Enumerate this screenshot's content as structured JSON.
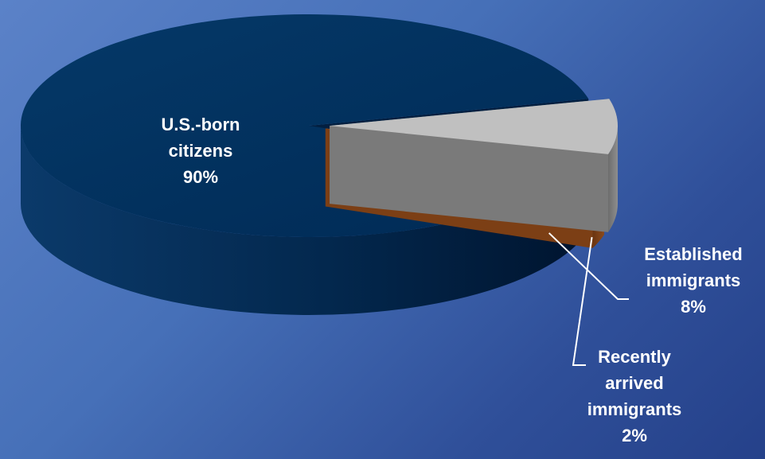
{
  "chart_data": {
    "type": "pie",
    "style": "3d-exploded",
    "title": "",
    "slices": [
      {
        "label_lines": [
          "U.S.-born",
          "citizens"
        ],
        "value": 90,
        "value_text": "90%",
        "color": "#003366"
      },
      {
        "label_lines": [
          "Established",
          "immigrants"
        ],
        "value": 8,
        "value_text": "8%",
        "color": "#c0c0c0"
      },
      {
        "label_lines": [
          "Recently",
          "arrived",
          "immigrants"
        ],
        "value": 2,
        "value_text": "2%",
        "color": "#d97b2a"
      }
    ],
    "exploded": [
      "Established immigrants",
      "Recently arrived immigrants"
    ]
  },
  "colors": {
    "background_start": "#5b82c8",
    "background_end": "#25418a",
    "label_text": "#ffffff",
    "leader_line": "#ffffff"
  }
}
